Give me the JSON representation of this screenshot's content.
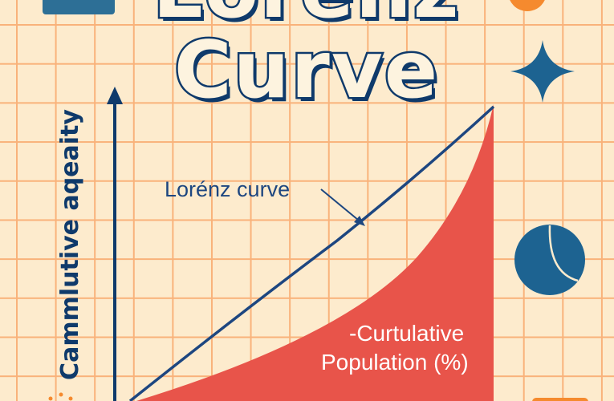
{
  "title": {
    "line1": "Lorenz",
    "line2": "Curve"
  },
  "y_axis_label": "Cammlutive aqeaity",
  "curve_annotation": "Lorénz curve",
  "x_axis_label": {
    "line1": "-Curtulative",
    "line2": "Population (%)"
  },
  "colors": {
    "background": "#fdebcd",
    "grid": "#f9b27a",
    "navy": "#0f3a6b",
    "fill": "#e8544a",
    "blue": "#1d6391",
    "orange": "#f58a2e"
  }
}
